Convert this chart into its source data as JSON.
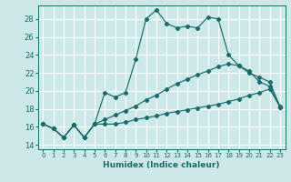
{
  "xlabel": "Humidex (Indice chaleur)",
  "bg_color": "#cce8e8",
  "grid_color": "#ffffff",
  "line_color": "#1a6b6b",
  "xlim": [
    -0.5,
    23.5
  ],
  "ylim": [
    13.5,
    29.5
  ],
  "yticks": [
    14,
    16,
    18,
    20,
    22,
    24,
    26,
    28
  ],
  "xticks": [
    0,
    1,
    2,
    3,
    4,
    5,
    6,
    7,
    8,
    9,
    10,
    11,
    12,
    13,
    14,
    15,
    16,
    17,
    18,
    19,
    20,
    21,
    22,
    23
  ],
  "series1_x": [
    0,
    1,
    2,
    3,
    4,
    5,
    6,
    7,
    8,
    9,
    10,
    11,
    12,
    13,
    14,
    15,
    16,
    17,
    18,
    19,
    20,
    21,
    22,
    23
  ],
  "series1_y": [
    16.3,
    15.8,
    14.8,
    16.2,
    14.8,
    16.3,
    19.8,
    19.3,
    19.8,
    23.5,
    28.0,
    29.0,
    27.5,
    27.0,
    27.2,
    27.0,
    28.2,
    28.0,
    24.0,
    22.8,
    22.2,
    21.0,
    20.5,
    18.3
  ],
  "series2_x": [
    0,
    1,
    2,
    3,
    4,
    5,
    6,
    7,
    8,
    9,
    10,
    11,
    12,
    13,
    14,
    15,
    16,
    17,
    18,
    19,
    20,
    21,
    22,
    23
  ],
  "series2_y": [
    16.3,
    15.8,
    14.8,
    16.2,
    14.8,
    16.3,
    16.3,
    16.3,
    16.5,
    16.8,
    17.0,
    17.2,
    17.5,
    17.7,
    17.9,
    18.1,
    18.3,
    18.5,
    18.8,
    19.1,
    19.5,
    19.8,
    20.2,
    18.2
  ],
  "series3_x": [
    0,
    1,
    2,
    3,
    4,
    5,
    6,
    7,
    8,
    9,
    10,
    11,
    12,
    13,
    14,
    15,
    16,
    17,
    18,
    19,
    20,
    21,
    22,
    23
  ],
  "series3_y": [
    16.3,
    15.8,
    14.8,
    16.2,
    14.8,
    16.3,
    16.8,
    17.3,
    17.8,
    18.3,
    19.0,
    19.5,
    20.2,
    20.8,
    21.3,
    21.8,
    22.2,
    22.7,
    23.0,
    22.8,
    22.0,
    21.5,
    21.0,
    18.2
  ]
}
